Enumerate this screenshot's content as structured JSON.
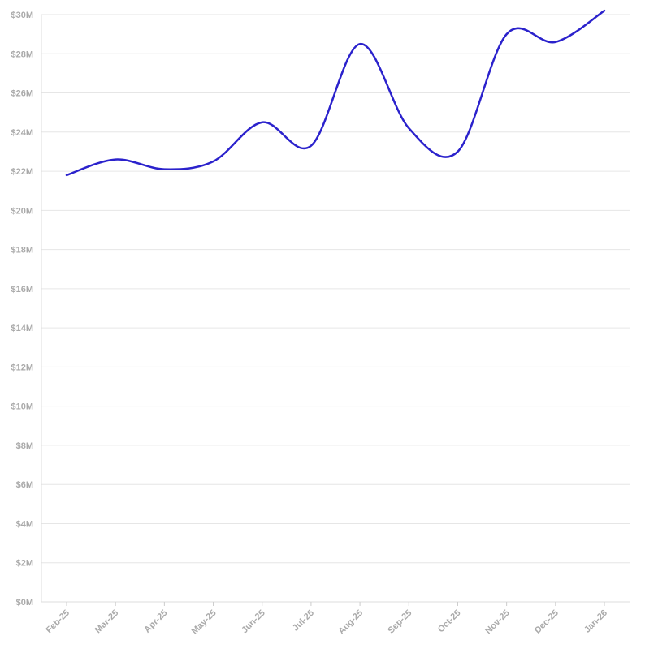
{
  "chart_data": {
    "type": "line",
    "title": "",
    "xlabel": "",
    "ylabel": "",
    "categories": [
      "Feb-25",
      "Mar-25",
      "Apr-25",
      "May-25",
      "Jun-25",
      "Jul-25",
      "Aug-25",
      "Sep-25",
      "Oct-25",
      "Nov-25",
      "Dec-25",
      "Jan-26"
    ],
    "series": [
      {
        "color": "#2b22cc",
        "values": [
          21.8,
          22.6,
          22.1,
          22.5,
          24.5,
          23.3,
          28.5,
          24.2,
          23.0,
          29.0,
          28.6,
          30.2
        ]
      }
    ],
    "y_unit": "millions of dollars",
    "ylim": [
      0,
      30
    ],
    "y_ticks": [
      {
        "value": 0,
        "label": "$0M"
      },
      {
        "value": 2,
        "label": "$2M"
      },
      {
        "value": 4,
        "label": "$4M"
      },
      {
        "value": 6,
        "label": "$6M"
      },
      {
        "value": 8,
        "label": "$8M"
      },
      {
        "value": 10,
        "label": "$10M"
      },
      {
        "value": 12,
        "label": "$12M"
      },
      {
        "value": 14,
        "label": "$14M"
      },
      {
        "value": 16,
        "label": "$16M"
      },
      {
        "value": 18,
        "label": "$18M"
      },
      {
        "value": 20,
        "label": "$20M"
      },
      {
        "value": 22,
        "label": "$22M"
      },
      {
        "value": 24,
        "label": "$24M"
      },
      {
        "value": 26,
        "label": "$26M"
      },
      {
        "value": 28,
        "label": "$28M"
      },
      {
        "value": 30,
        "label": "$30M"
      }
    ],
    "grid": true,
    "legend": "none",
    "curve": "smooth"
  }
}
